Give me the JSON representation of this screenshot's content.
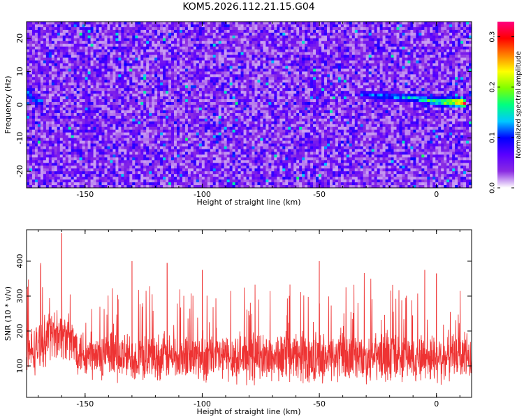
{
  "title": "KOM5.2026.112.21.15.G04",
  "chart_data": [
    {
      "type": "heatmap",
      "name": "spectrogram",
      "xlabel": "Height of straight line (km)",
      "ylabel": "Frequency (Hz)",
      "xlim": [
        -175,
        15
      ],
      "ylim": [
        -25,
        25
      ],
      "xticks": [
        -150,
        -100,
        -50,
        0
      ],
      "yticks": [
        -20,
        -10,
        0,
        10,
        20
      ],
      "colorbar": {
        "label": "Normalized spectral amplitude",
        "range": [
          0.0,
          0.33
        ],
        "ticks": [
          0.0,
          0.1,
          0.2,
          0.3
        ],
        "colormap": [
          "#ffffff",
          "#8a2be2",
          "#5a00ff",
          "#0000ff",
          "#00c8ff",
          "#00ff80",
          "#80ff00",
          "#ffff00",
          "#ff8000",
          "#ff0000",
          "#ff0080"
        ]
      },
      "background_level": 0.05,
      "ridge": {
        "description_points": [
          {
            "x": -175,
            "y": 4,
            "amp": 0.17
          },
          {
            "x": -171,
            "y": 1,
            "amp": 0.13
          },
          {
            "x": -30,
            "y": 3,
            "amp": 0.12
          },
          {
            "x": -10,
            "y": 2,
            "amp": 0.16
          },
          {
            "x": 0,
            "y": 1,
            "amp": 0.2
          },
          {
            "x": 13,
            "y": 0.5,
            "amp": 0.32
          }
        ]
      }
    },
    {
      "type": "line",
      "name": "snr",
      "xlabel": "Height of straight line (km)",
      "ylabel": "SNR (10 * v/v)",
      "xlim": [
        -175,
        15
      ],
      "ylim": [
        10,
        490
      ],
      "xticks": [
        -150,
        -100,
        -50,
        0
      ],
      "yticks": [
        100,
        200,
        300,
        400
      ],
      "color": "#ee3333",
      "series": {
        "n_points": 1900,
        "mean": 125,
        "spread": 55,
        "features": [
          {
            "x": -160,
            "y": 480
          },
          {
            "x": -175,
            "y": 320
          },
          {
            "x": -130,
            "y": 400
          },
          {
            "x": -115,
            "y": 395
          },
          {
            "x": -100,
            "y": 375
          },
          {
            "x": -50,
            "y": 400
          },
          {
            "x": -5,
            "y": 375
          },
          {
            "x": 0,
            "y": 365
          }
        ]
      }
    }
  ]
}
